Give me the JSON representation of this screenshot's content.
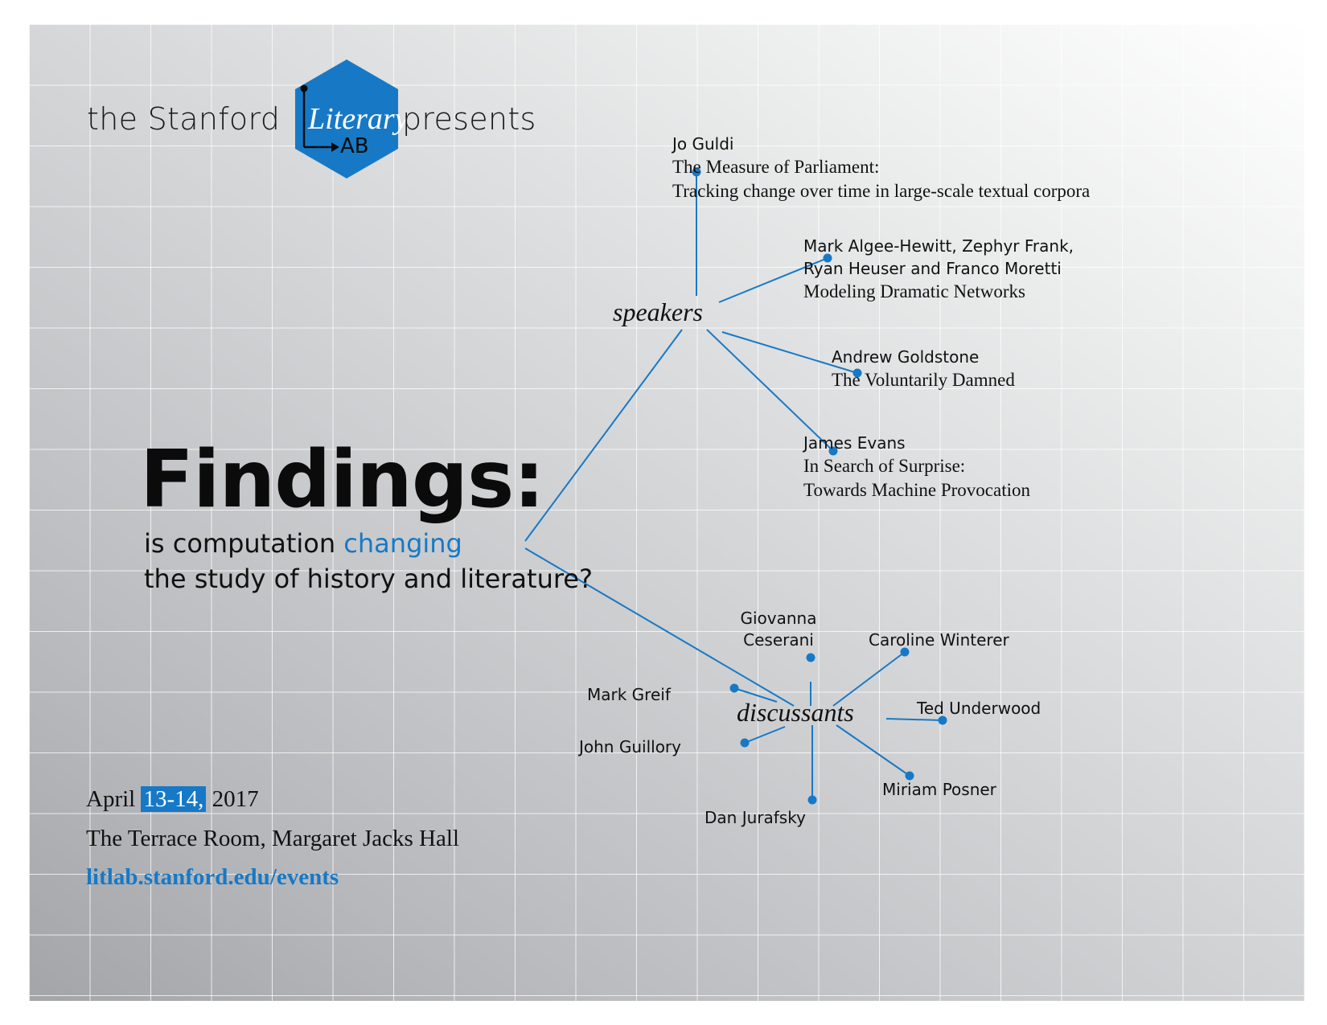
{
  "header": {
    "prefix": "the Stanford",
    "suffix": "presents",
    "logo": {
      "script_text": "Literary",
      "block_text": "AB",
      "color": "#1779c6"
    }
  },
  "title": "Findings:",
  "subtitle": {
    "line1_part1": "is computation ",
    "line1_accent": "changing",
    "line2": "the study of history and literature?"
  },
  "speakers": {
    "hub_label": "speakers",
    "items": [
      {
        "names": [
          "Jo Guldi"
        ],
        "talk": [
          "The Measure of Parliament:",
          "Tracking change over time in large-scale textual corpora"
        ]
      },
      {
        "names": [
          "Mark Algee-Hewitt, Zephyr Frank,",
          "Ryan Heuser and Franco Moretti"
        ],
        "talk": [
          "Modeling Dramatic Networks"
        ]
      },
      {
        "names": [
          "Andrew Goldstone"
        ],
        "talk": [
          "The Voluntarily Damned"
        ]
      },
      {
        "names": [
          "James Evans"
        ],
        "talk": [
          "In Search of Surprise:",
          "Towards Machine Provocation"
        ]
      }
    ]
  },
  "discussants": {
    "hub_label": "discussants",
    "items": [
      {
        "name_lines": [
          "Giovanna",
          "Ceserani"
        ]
      },
      {
        "name_lines": [
          "Caroline Winterer"
        ]
      },
      {
        "name_lines": [
          "Mark Greif"
        ]
      },
      {
        "name_lines": [
          "Ted Underwood"
        ]
      },
      {
        "name_lines": [
          "John Guillory"
        ]
      },
      {
        "name_lines": [
          "Miriam Posner"
        ]
      },
      {
        "name_lines": [
          "Dan Jurafsky"
        ]
      }
    ]
  },
  "event": {
    "date_prefix": "April ",
    "date_highlight": "13-14,",
    "date_suffix": " 2017",
    "location": "The Terrace Room, Margaret Jacks Hall",
    "url": "litlab.stanford.edu/events"
  },
  "colors": {
    "accent": "#1779c6",
    "text": "#111111"
  }
}
